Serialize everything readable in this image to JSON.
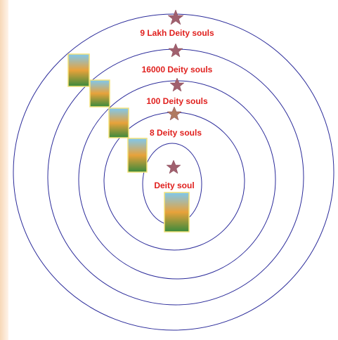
{
  "rings": [
    {
      "label": "9 Lakh Deity souls"
    },
    {
      "label": "16000 Deity souls"
    },
    {
      "label": "100 Deity souls"
    },
    {
      "label": "8 Deity souls"
    },
    {
      "label": "Deity soul"
    }
  ]
}
